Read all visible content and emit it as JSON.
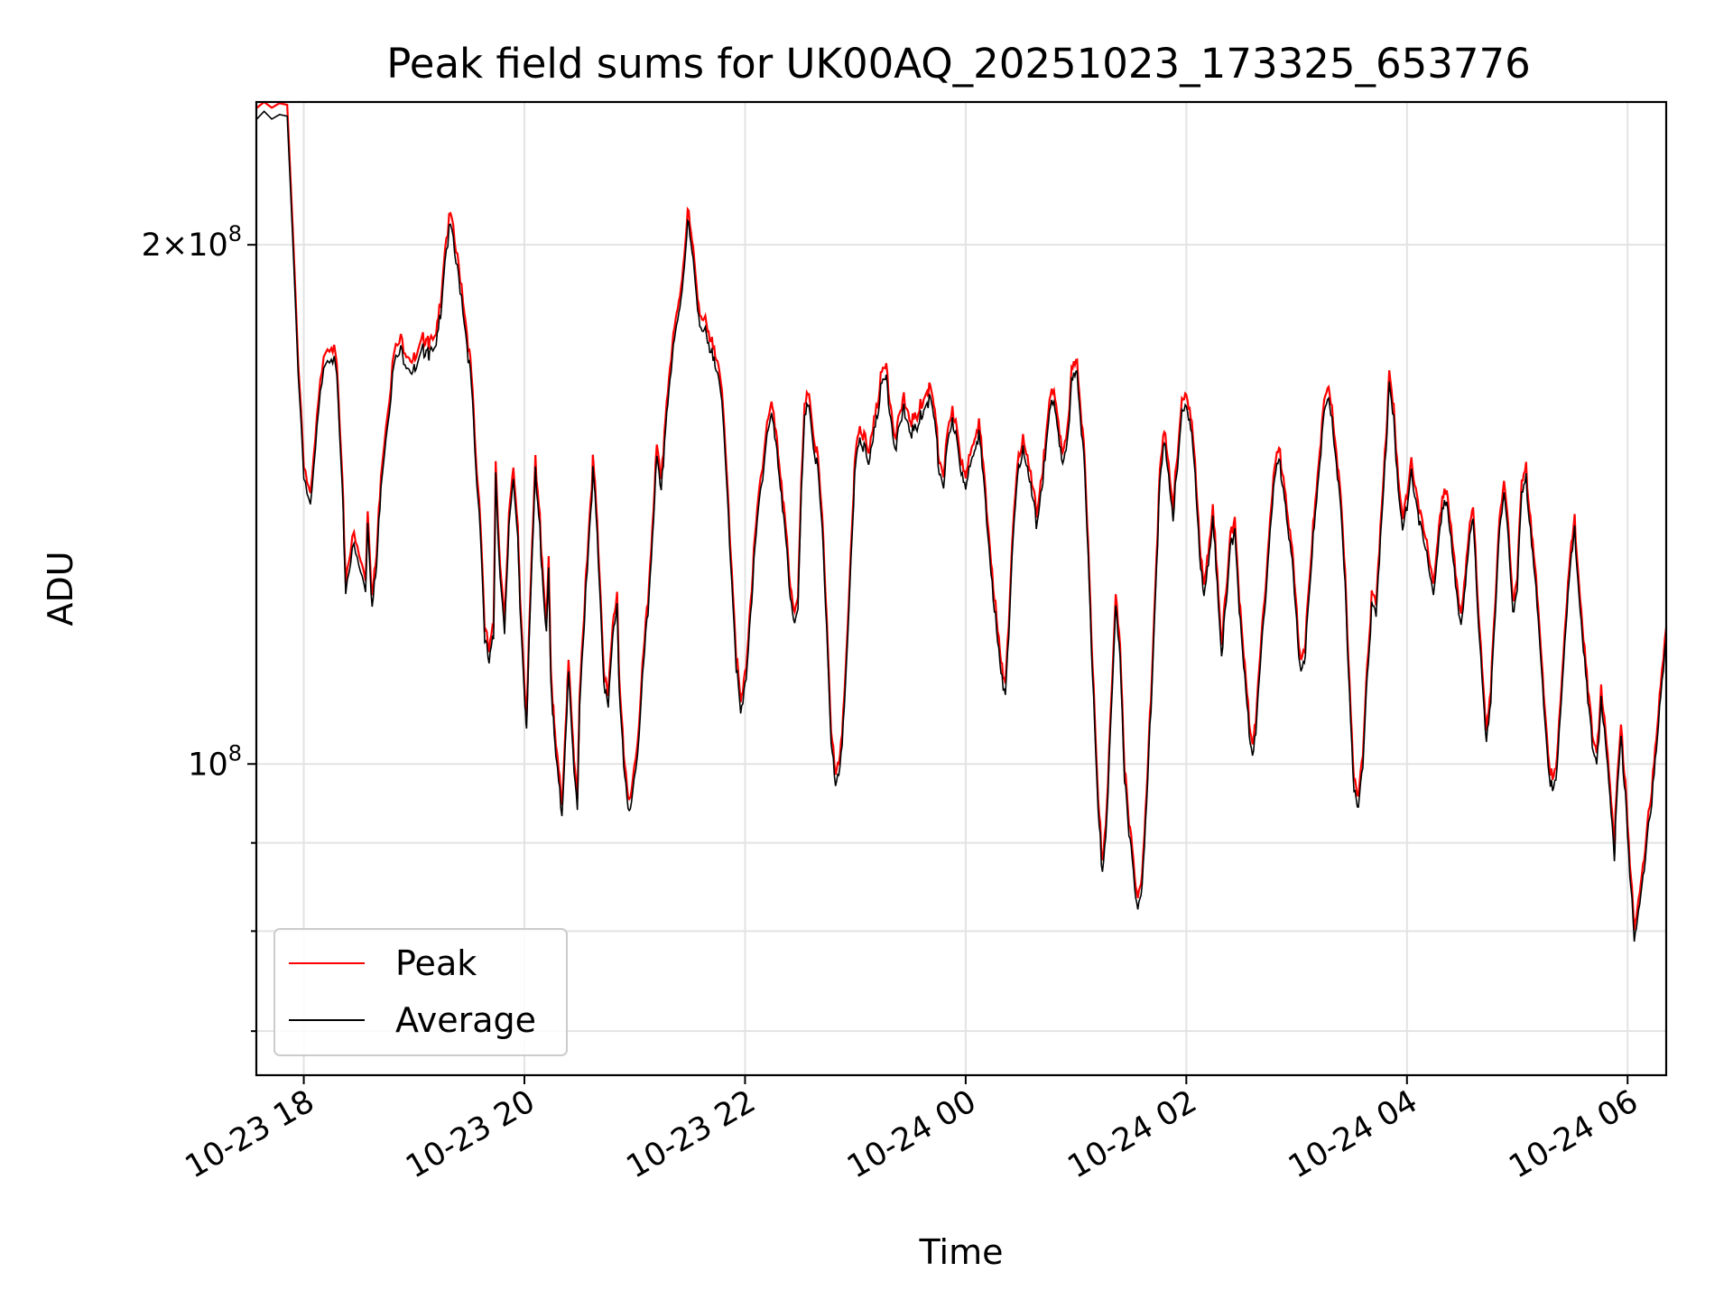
{
  "chart_data": {
    "type": "line",
    "title": "Peak field sums for UK00AQ_20251023_173325_653776",
    "xlabel": "Time",
    "ylabel": "ADU",
    "x_tick_labels": [
      "10-23 18",
      "10-23 20",
      "10-23 22",
      "10-24 00",
      "10-24 02",
      "10-24 04",
      "10-24 06"
    ],
    "x_tick_hours": [
      0,
      2,
      4,
      6,
      8,
      10,
      12
    ],
    "xlim_hours": [
      -0.43,
      12.35
    ],
    "x_origin": "10-23 18",
    "y_scale": "log",
    "ylim": [
      66000000,
      242000000
    ],
    "y_major_ticks": [
      {
        "value": 100000000,
        "mant": "",
        "exp": "8"
      },
      {
        "value": 200000000,
        "mant": "2×",
        "exp": "8"
      }
    ],
    "y_minor_grid": [
      70000000,
      80000000,
      90000000
    ],
    "grid": true,
    "legend_position": "lower-left",
    "series": [
      {
        "name": "Peak",
        "color": "#ff0000",
        "points": [
          [
            -0.43,
            240
          ],
          [
            -0.15,
            240
          ],
          [
            -0.05,
            172
          ],
          [
            0.0,
            150
          ],
          [
            0.06,
            142
          ],
          [
            0.12,
            158
          ],
          [
            0.18,
            174
          ],
          [
            0.25,
            176
          ],
          [
            0.3,
            170
          ],
          [
            0.35,
            145
          ],
          [
            0.38,
            128
          ],
          [
            0.44,
            136
          ],
          [
            0.5,
            132
          ],
          [
            0.56,
            128
          ],
          [
            0.58,
            141
          ],
          [
            0.62,
            125
          ],
          [
            0.66,
            132
          ],
          [
            0.7,
            148
          ],
          [
            0.76,
            161
          ],
          [
            0.82,
            173
          ],
          [
            0.88,
            176
          ],
          [
            0.93,
            174
          ],
          [
            0.98,
            172
          ],
          [
            1.02,
            171
          ],
          [
            1.08,
            176
          ],
          [
            1.12,
            178
          ],
          [
            1.14,
            175
          ],
          [
            1.2,
            176
          ],
          [
            1.24,
            186
          ],
          [
            1.28,
            200
          ],
          [
            1.33,
            208
          ],
          [
            1.38,
            198
          ],
          [
            1.43,
            190
          ],
          [
            1.48,
            178
          ],
          [
            1.52,
            168
          ],
          [
            1.56,
            150
          ],
          [
            1.6,
            140
          ],
          [
            1.64,
            120
          ],
          [
            1.68,
            116
          ],
          [
            1.72,
            120
          ],
          [
            1.74,
            150
          ],
          [
            1.78,
            130
          ],
          [
            1.82,
            120
          ],
          [
            1.86,
            140
          ],
          [
            1.9,
            150
          ],
          [
            1.94,
            136
          ],
          [
            1.96,
            125
          ],
          [
            2.0,
            112
          ],
          [
            2.02,
            107
          ],
          [
            2.06,
            128
          ],
          [
            2.1,
            150
          ],
          [
            2.14,
            140
          ],
          [
            2.16,
            130
          ],
          [
            2.2,
            120
          ],
          [
            2.22,
            132
          ],
          [
            2.24,
            114
          ],
          [
            2.27,
            105
          ],
          [
            2.3,
            100
          ],
          [
            2.34,
            95
          ],
          [
            2.38,
            108
          ],
          [
            2.4,
            114
          ],
          [
            2.44,
            103
          ],
          [
            2.48,
            96
          ],
          [
            2.5,
            110
          ],
          [
            2.54,
            120
          ],
          [
            2.56,
            130
          ],
          [
            2.6,
            142
          ],
          [
            2.62,
            150
          ],
          [
            2.64,
            145
          ],
          [
            2.68,
            130
          ],
          [
            2.72,
            114
          ],
          [
            2.76,
            109
          ],
          [
            2.8,
            120
          ],
          [
            2.84,
            126
          ],
          [
            2.86,
            112
          ],
          [
            2.9,
            101
          ],
          [
            2.94,
            95
          ],
          [
            2.98,
            98
          ],
          [
            3.04,
            105
          ],
          [
            3.08,
            116
          ],
          [
            3.12,
            124
          ],
          [
            3.16,
            138
          ],
          [
            3.2,
            152
          ],
          [
            3.24,
            145
          ],
          [
            3.28,
            160
          ],
          [
            3.32,
            170
          ],
          [
            3.36,
            178
          ],
          [
            3.4,
            185
          ],
          [
            3.44,
            195
          ],
          [
            3.48,
            210
          ],
          [
            3.52,
            200
          ],
          [
            3.56,
            190
          ],
          [
            3.6,
            182
          ],
          [
            3.64,
            180
          ],
          [
            3.68,
            175
          ],
          [
            3.72,
            175
          ],
          [
            3.76,
            172
          ],
          [
            3.8,
            160
          ],
          [
            3.84,
            145
          ],
          [
            3.88,
            130
          ],
          [
            3.92,
            116
          ],
          [
            3.96,
            108
          ],
          [
            4.0,
            112
          ],
          [
            4.04,
            122
          ],
          [
            4.08,
            132
          ],
          [
            4.12,
            142
          ],
          [
            4.16,
            150
          ],
          [
            4.2,
            158
          ],
          [
            4.24,
            162
          ],
          [
            4.28,
            155
          ],
          [
            4.32,
            148
          ],
          [
            4.36,
            140
          ],
          [
            4.4,
            128
          ],
          [
            4.44,
            122
          ],
          [
            4.48,
            126
          ],
          [
            4.5,
            140
          ],
          [
            4.54,
            160
          ],
          [
            4.58,
            165
          ],
          [
            4.62,
            155
          ],
          [
            4.66,
            150
          ],
          [
            4.7,
            138
          ],
          [
            4.74,
            122
          ],
          [
            4.78,
            105
          ],
          [
            4.82,
            98
          ],
          [
            4.86,
            100
          ],
          [
            4.9,
            110
          ],
          [
            4.94,
            125
          ],
          [
            4.98,
            140
          ],
          [
            5.0,
            152
          ],
          [
            5.04,
            158
          ],
          [
            5.08,
            155
          ],
          [
            5.12,
            150
          ],
          [
            5.16,
            158
          ],
          [
            5.2,
            163
          ],
          [
            5.24,
            168
          ],
          [
            5.28,
            170
          ],
          [
            5.32,
            162
          ],
          [
            5.36,
            155
          ],
          [
            5.4,
            158
          ],
          [
            5.44,
            163
          ],
          [
            5.48,
            160
          ],
          [
            5.52,
            158
          ],
          [
            5.56,
            158
          ],
          [
            5.6,
            162
          ],
          [
            5.64,
            165
          ],
          [
            5.68,
            165
          ],
          [
            5.72,
            160
          ],
          [
            5.76,
            150
          ],
          [
            5.8,
            148
          ],
          [
            5.84,
            155
          ],
          [
            5.88,
            160
          ],
          [
            5.92,
            158
          ],
          [
            5.96,
            150
          ],
          [
            6.0,
            145
          ],
          [
            6.04,
            152
          ],
          [
            6.08,
            156
          ],
          [
            6.12,
            158
          ],
          [
            6.16,
            148
          ],
          [
            6.2,
            138
          ],
          [
            6.24,
            130
          ],
          [
            6.28,
            121
          ],
          [
            6.32,
            114
          ],
          [
            6.36,
            112
          ],
          [
            6.4,
            125
          ],
          [
            6.44,
            140
          ],
          [
            6.48,
            150
          ],
          [
            6.52,
            156
          ],
          [
            6.56,
            150
          ],
          [
            6.6,
            145
          ],
          [
            6.64,
            140
          ],
          [
            6.68,
            146
          ],
          [
            6.72,
            152
          ],
          [
            6.76,
            162
          ],
          [
            6.8,
            166
          ],
          [
            6.84,
            158
          ],
          [
            6.88,
            150
          ],
          [
            6.92,
            155
          ],
          [
            6.96,
            170
          ],
          [
            7.0,
            173
          ],
          [
            7.04,
            160
          ],
          [
            7.08,
            150
          ],
          [
            7.12,
            130
          ],
          [
            7.16,
            110
          ],
          [
            7.2,
            95
          ],
          [
            7.24,
            88
          ],
          [
            7.28,
            95
          ],
          [
            7.32,
            108
          ],
          [
            7.36,
            125
          ],
          [
            7.4,
            118
          ],
          [
            7.44,
            100
          ],
          [
            7.48,
            92
          ],
          [
            7.52,
            88
          ],
          [
            7.56,
            84
          ],
          [
            7.6,
            86
          ],
          [
            7.64,
            96
          ],
          [
            7.68,
            110
          ],
          [
            7.72,
            128
          ],
          [
            7.76,
            148
          ],
          [
            7.8,
            155
          ],
          [
            7.84,
            150
          ],
          [
            7.88,
            142
          ],
          [
            7.92,
            150
          ],
          [
            7.96,
            162
          ],
          [
            8.0,
            165
          ],
          [
            8.04,
            160
          ],
          [
            8.08,
            148
          ],
          [
            8.12,
            135
          ],
          [
            8.16,
            128
          ],
          [
            8.2,
            132
          ],
          [
            8.24,
            140
          ],
          [
            8.28,
            130
          ],
          [
            8.32,
            118
          ],
          [
            8.36,
            125
          ],
          [
            8.4,
            135
          ],
          [
            8.44,
            140
          ],
          [
            8.48,
            125
          ],
          [
            8.52,
            115
          ],
          [
            8.56,
            108
          ],
          [
            8.6,
            103
          ],
          [
            8.64,
            108
          ],
          [
            8.68,
            118
          ],
          [
            8.72,
            128
          ],
          [
            8.76,
            140
          ],
          [
            8.8,
            148
          ],
          [
            8.84,
            152
          ],
          [
            8.88,
            148
          ],
          [
            8.92,
            140
          ],
          [
            8.96,
            132
          ],
          [
            9.0,
            122
          ],
          [
            9.04,
            115
          ],
          [
            9.08,
            118
          ],
          [
            9.12,
            128
          ],
          [
            9.16,
            140
          ],
          [
            9.2,
            150
          ],
          [
            9.24,
            160
          ],
          [
            9.28,
            164
          ],
          [
            9.32,
            162
          ],
          [
            9.36,
            152
          ],
          [
            9.4,
            142
          ],
          [
            9.44,
            128
          ],
          [
            9.48,
            112
          ],
          [
            9.52,
            98
          ],
          [
            9.56,
            95
          ],
          [
            9.6,
            102
          ],
          [
            9.64,
            115
          ],
          [
            9.68,
            125
          ],
          [
            9.72,
            123
          ],
          [
            9.76,
            138
          ],
          [
            9.8,
            152
          ],
          [
            9.84,
            168
          ],
          [
            9.88,
            160
          ],
          [
            9.92,
            148
          ],
          [
            9.96,
            140
          ],
          [
            10.0,
            142
          ],
          [
            10.04,
            150
          ],
          [
            10.08,
            145
          ],
          [
            10.12,
            140
          ],
          [
            10.16,
            135
          ],
          [
            10.2,
            132
          ],
          [
            10.24,
            128
          ],
          [
            10.28,
            134
          ],
          [
            10.32,
            142
          ],
          [
            10.36,
            145
          ],
          [
            10.4,
            138
          ],
          [
            10.44,
            128
          ],
          [
            10.48,
            122
          ],
          [
            10.52,
            128
          ],
          [
            10.56,
            136
          ],
          [
            10.6,
            140
          ],
          [
            10.64,
            125
          ],
          [
            10.68,
            115
          ],
          [
            10.72,
            104
          ],
          [
            10.76,
            110
          ],
          [
            10.8,
            125
          ],
          [
            10.84,
            140
          ],
          [
            10.88,
            145
          ],
          [
            10.92,
            136
          ],
          [
            10.96,
            125
          ],
          [
            11.0,
            128
          ],
          [
            11.04,
            145
          ],
          [
            11.08,
            148
          ],
          [
            11.12,
            140
          ],
          [
            11.16,
            130
          ],
          [
            11.2,
            120
          ],
          [
            11.24,
            110
          ],
          [
            11.28,
            102
          ],
          [
            11.32,
            97
          ],
          [
            11.36,
            100
          ],
          [
            11.4,
            112
          ],
          [
            11.44,
            122
          ],
          [
            11.48,
            132
          ],
          [
            11.52,
            138
          ],
          [
            11.56,
            128
          ],
          [
            11.6,
            118
          ],
          [
            11.64,
            110
          ],
          [
            11.68,
            105
          ],
          [
            11.72,
            102
          ],
          [
            11.76,
            110
          ],
          [
            11.8,
            104
          ],
          [
            11.84,
            98
          ],
          [
            11.88,
            90
          ],
          [
            11.9,
            96
          ],
          [
            11.94,
            105
          ],
          [
            11.98,
            98
          ],
          [
            12.02,
            88
          ],
          [
            12.06,
            80
          ],
          [
            12.1,
            83
          ],
          [
            12.14,
            88
          ],
          [
            12.18,
            92
          ],
          [
            12.22,
            96
          ],
          [
            12.26,
            104
          ],
          [
            12.3,
            112
          ],
          [
            12.35,
            120
          ]
        ]
      },
      {
        "name": "Average",
        "color": "#000000",
        "points": []
      }
    ]
  }
}
